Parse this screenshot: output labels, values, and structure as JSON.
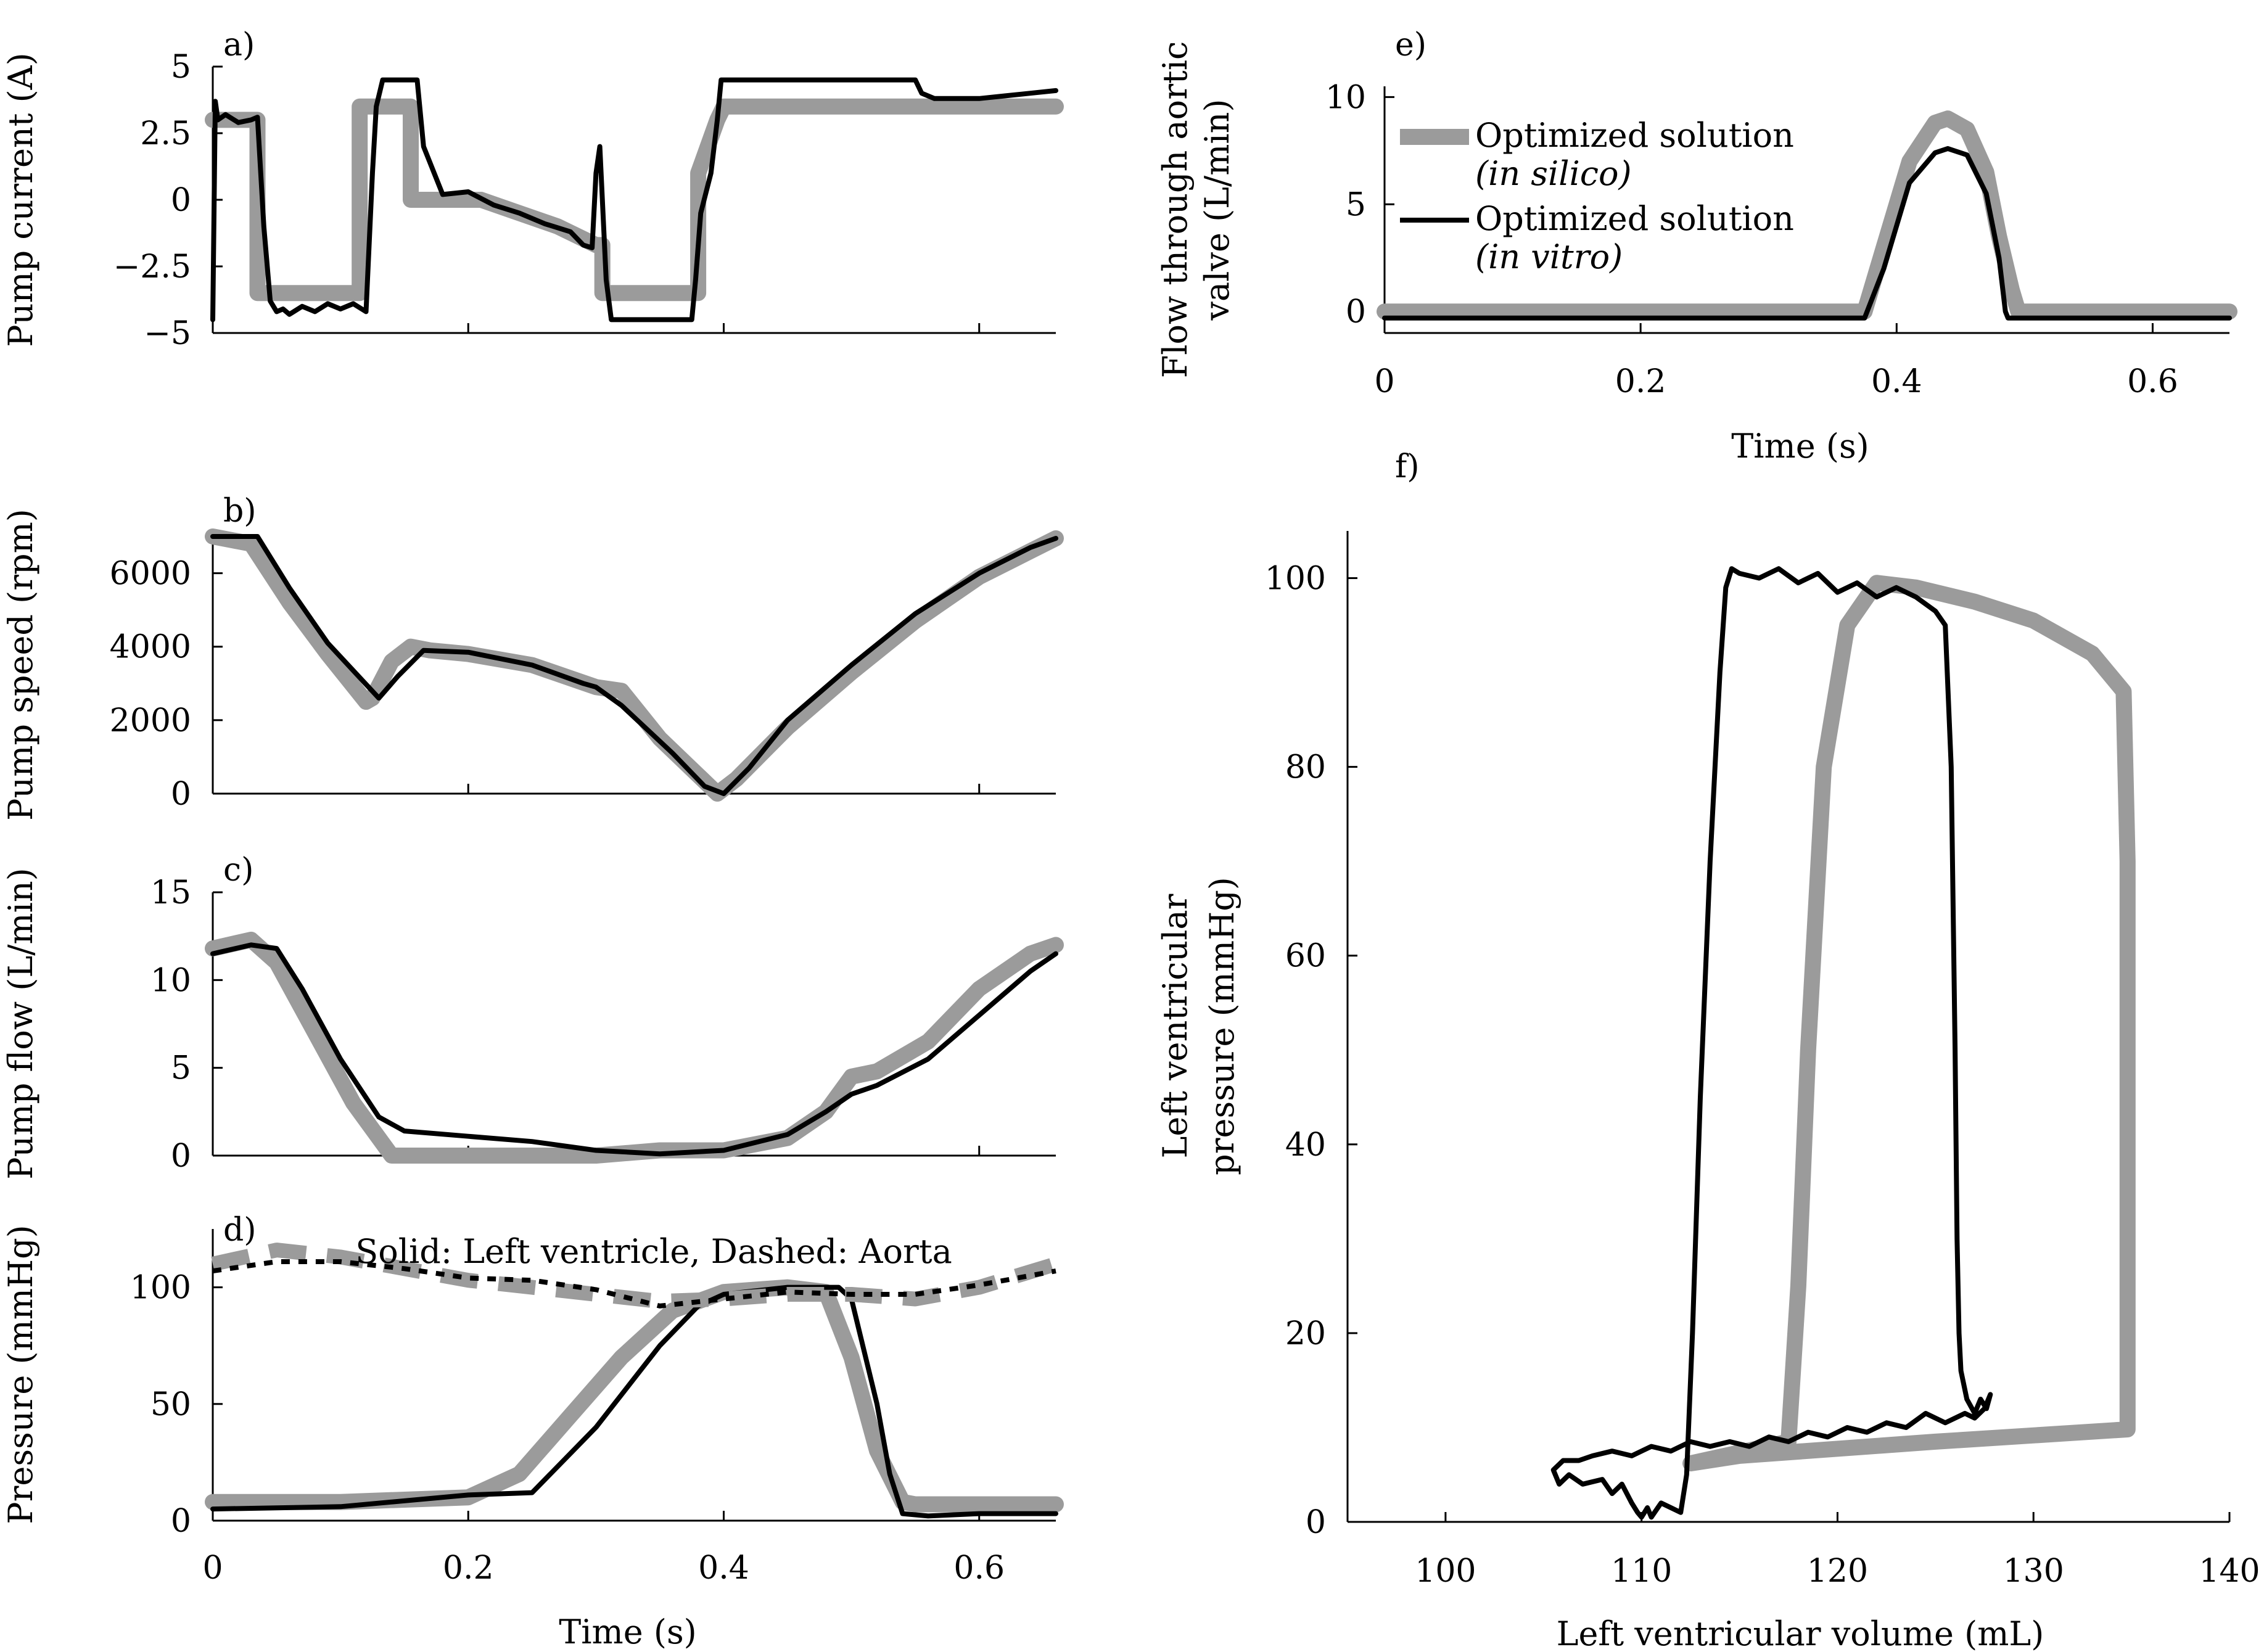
{
  "figure_colors": {
    "in_silico": "#9b9b9b",
    "in_vitro": "#000000"
  },
  "chart_data": [
    {
      "id": "a",
      "panel_label": "a)",
      "type": "line",
      "xlim": [
        0,
        0.66
      ],
      "ylim": [
        -5,
        5
      ],
      "xticks": [
        0,
        0.2,
        0.4,
        0.6
      ],
      "yticks": [
        -5,
        -2.5,
        0,
        2.5,
        5
      ],
      "ytick_labels": [
        "−5",
        "−2.5",
        "0",
        "2.5",
        "5"
      ],
      "ylabel": "Pump current (A)",
      "series": [
        {
          "name": "Optimized solution (in silico)",
          "style": "silico",
          "x": [
            0,
            0.003,
            0.035,
            0.035,
            0.115,
            0.115,
            0.155,
            0.155,
            0.21,
            0.24,
            0.27,
            0.3,
            0.305,
            0.305,
            0.38,
            0.38,
            0.395,
            0.4,
            0.66
          ],
          "y": [
            3.0,
            3.0,
            3.0,
            -3.5,
            -3.5,
            3.5,
            3.5,
            0.0,
            0.0,
            -0.5,
            -1.0,
            -1.7,
            -1.7,
            -3.5,
            -3.5,
            1.0,
            3.0,
            3.5,
            3.5
          ]
        },
        {
          "name": "Optimized solution (in vitro)",
          "style": "vitro",
          "x": [
            0,
            0.002,
            0.004,
            0.01,
            0.02,
            0.03,
            0.035,
            0.04,
            0.045,
            0.05,
            0.055,
            0.06,
            0.07,
            0.08,
            0.09,
            0.1,
            0.11,
            0.12,
            0.125,
            0.128,
            0.133,
            0.14,
            0.16,
            0.165,
            0.18,
            0.2,
            0.22,
            0.24,
            0.26,
            0.28,
            0.29,
            0.297,
            0.3,
            0.303,
            0.308,
            0.312,
            0.315,
            0.33,
            0.36,
            0.375,
            0.378,
            0.382,
            0.39,
            0.395,
            0.398,
            0.4,
            0.42,
            0.5,
            0.55,
            0.555,
            0.565,
            0.6,
            0.62,
            0.64,
            0.66
          ],
          "y": [
            -4.5,
            3.7,
            3.0,
            3.2,
            2.9,
            3.0,
            3.1,
            -1.0,
            -3.8,
            -4.2,
            -4.1,
            -4.3,
            -4.0,
            -4.2,
            -3.9,
            -4.1,
            -3.9,
            -4.2,
            1.0,
            3.5,
            4.5,
            4.5,
            4.5,
            2.0,
            0.2,
            0.3,
            -0.2,
            -0.5,
            -0.9,
            -1.2,
            -1.7,
            -1.8,
            1.0,
            2.0,
            -3.0,
            -4.5,
            -4.5,
            -4.5,
            -4.5,
            -4.5,
            -3.0,
            -0.5,
            1.0,
            3.0,
            4.5,
            4.5,
            4.5,
            4.5,
            4.5,
            4.0,
            3.8,
            3.8,
            3.9,
            4.0,
            4.1
          ]
        }
      ]
    },
    {
      "id": "b",
      "panel_label": "b)",
      "type": "line",
      "xlim": [
        0,
        0.66
      ],
      "ylim": [
        0,
        7000
      ],
      "xticks": [
        0,
        0.2,
        0.4,
        0.6
      ],
      "yticks": [
        0,
        2000,
        4000,
        6000
      ],
      "ytick_labels": [
        "0",
        "2000",
        "4000",
        "6000"
      ],
      "ylabel": "Pump speed (rpm)",
      "series": [
        {
          "name": "Optimized solution (in silico)",
          "style": "silico",
          "x": [
            0,
            0.03,
            0.06,
            0.09,
            0.12,
            0.125,
            0.14,
            0.155,
            0.17,
            0.2,
            0.25,
            0.3,
            0.32,
            0.35,
            0.38,
            0.395,
            0.41,
            0.45,
            0.5,
            0.55,
            0.6,
            0.64,
            0.66
          ],
          "y": [
            7000,
            6800,
            5200,
            3800,
            2500,
            2600,
            3600,
            4000,
            3900,
            3800,
            3500,
            2900,
            2800,
            1500,
            500,
            0,
            400,
            1800,
            3300,
            4700,
            5900,
            6600,
            6950
          ]
        },
        {
          "name": "Optimized solution (in vitro)",
          "style": "vitro",
          "x": [
            0,
            0.035,
            0.06,
            0.09,
            0.13,
            0.145,
            0.165,
            0.2,
            0.25,
            0.29,
            0.3,
            0.32,
            0.36,
            0.385,
            0.4,
            0.42,
            0.45,
            0.5,
            0.55,
            0.6,
            0.64,
            0.66
          ],
          "y": [
            7000,
            7000,
            5600,
            4100,
            2600,
            3200,
            3900,
            3850,
            3500,
            3000,
            2900,
            2400,
            1100,
            200,
            0,
            700,
            2000,
            3500,
            4900,
            6000,
            6700,
            6950
          ]
        }
      ]
    },
    {
      "id": "c",
      "panel_label": "c)",
      "type": "line",
      "xlim": [
        0,
        0.66
      ],
      "ylim": [
        0,
        15
      ],
      "xticks": [
        0,
        0.2,
        0.4,
        0.6
      ],
      "yticks": [
        0,
        5,
        10,
        15
      ],
      "ytick_labels": [
        "0",
        "5",
        "10",
        "15"
      ],
      "ylabel": "Pump flow (L/min)",
      "series": [
        {
          "name": "Optimized solution (in silico)",
          "style": "silico",
          "x": [
            0,
            0.03,
            0.05,
            0.08,
            0.11,
            0.14,
            0.2,
            0.3,
            0.35,
            0.4,
            0.45,
            0.48,
            0.5,
            0.52,
            0.56,
            0.6,
            0.64,
            0.66
          ],
          "y": [
            11.8,
            12.3,
            11.0,
            7.0,
            3.0,
            0.0,
            0.0,
            0.0,
            0.3,
            0.3,
            1.0,
            2.5,
            4.5,
            4.8,
            6.5,
            9.5,
            11.5,
            12.0
          ]
        },
        {
          "name": "Optimized solution (in vitro)",
          "style": "vitro",
          "x": [
            0,
            0.03,
            0.05,
            0.07,
            0.1,
            0.13,
            0.15,
            0.2,
            0.25,
            0.3,
            0.35,
            0.4,
            0.45,
            0.48,
            0.5,
            0.52,
            0.56,
            0.6,
            0.64,
            0.66
          ],
          "y": [
            11.5,
            12.0,
            11.8,
            9.5,
            5.5,
            2.2,
            1.4,
            1.1,
            0.8,
            0.3,
            0.1,
            0.3,
            1.2,
            2.5,
            3.5,
            4.0,
            5.5,
            8.0,
            10.5,
            11.5
          ]
        }
      ]
    },
    {
      "id": "d",
      "panel_label": "d)",
      "type": "line",
      "title": "Solid: Left ventricle, Dashed: Aorta",
      "xlim": [
        0,
        0.66
      ],
      "ylim": [
        0,
        125
      ],
      "xticks": [
        0,
        0.2,
        0.4,
        0.6
      ],
      "xtick_labels": [
        "0",
        "0.2",
        "0.4",
        "0.6"
      ],
      "yticks": [
        0,
        50,
        100
      ],
      "ytick_labels": [
        "0",
        "50",
        "100"
      ],
      "ylabel": "Pressure (mmHg)",
      "xlabel": "Time (s)",
      "series": [
        {
          "name": "Left ventricle (in silico)",
          "style": "silico",
          "x": [
            0,
            0.1,
            0.2,
            0.24,
            0.28,
            0.32,
            0.36,
            0.4,
            0.45,
            0.48,
            0.5,
            0.52,
            0.54,
            0.55,
            0.66
          ],
          "y": [
            8,
            8,
            10,
            20,
            45,
            70,
            90,
            98,
            100,
            98,
            70,
            30,
            8,
            7,
            7
          ]
        },
        {
          "name": "Left ventricle (in vitro)",
          "style": "vitro",
          "x": [
            0,
            0.1,
            0.2,
            0.25,
            0.3,
            0.35,
            0.38,
            0.4,
            0.45,
            0.49,
            0.5,
            0.52,
            0.53,
            0.54,
            0.56,
            0.6,
            0.66
          ],
          "y": [
            5,
            6,
            11,
            12,
            40,
            75,
            92,
            97,
            100,
            100,
            95,
            50,
            20,
            3,
            2,
            3,
            3
          ]
        },
        {
          "name": "Aorta (in silico)",
          "style": "silico-dash",
          "x": [
            0,
            0.05,
            0.1,
            0.15,
            0.2,
            0.25,
            0.3,
            0.35,
            0.4,
            0.45,
            0.5,
            0.55,
            0.6,
            0.66
          ],
          "y": [
            110,
            116,
            113,
            108,
            103,
            100,
            97,
            94,
            95,
            97,
            97,
            95,
            100,
            110
          ]
        },
        {
          "name": "Aorta (in vitro)",
          "style": "vitro-dot",
          "x": [
            0,
            0.05,
            0.1,
            0.15,
            0.2,
            0.25,
            0.3,
            0.35,
            0.4,
            0.45,
            0.5,
            0.55,
            0.6,
            0.66
          ],
          "y": [
            107,
            111,
            111,
            108,
            104,
            103,
            99,
            92,
            95,
            98,
            97,
            97,
            101,
            107
          ]
        }
      ]
    },
    {
      "id": "e",
      "panel_label": "e)",
      "type": "line",
      "xlim": [
        0,
        0.66
      ],
      "ylim": [
        -1,
        10.5
      ],
      "xticks": [
        0,
        0.2,
        0.4,
        0.6
      ],
      "xtick_labels": [
        "0",
        "0.2",
        "0.4",
        "0.6"
      ],
      "yticks": [
        0,
        5,
        10
      ],
      "ytick_labels": [
        "0",
        "5",
        "10"
      ],
      "ylabel": "Flow through aortic valve (L/min)",
      "xlabel": "Time (s)",
      "legend": [
        {
          "style": "silico",
          "line1": "Optimized solution",
          "line2": "(in silico)"
        },
        {
          "style": "vitro",
          "line1": "Optimized solution",
          "line2": "(in vitro)"
        }
      ],
      "series": [
        {
          "name": "Optimized solution (in silico)",
          "style": "silico",
          "x": [
            0,
            0.375,
            0.39,
            0.41,
            0.43,
            0.44,
            0.455,
            0.47,
            0.48,
            0.49,
            0.495,
            0.66
          ],
          "y": [
            0,
            0,
            3.0,
            7.0,
            8.8,
            9.0,
            8.5,
            6.5,
            3.5,
            1.0,
            0,
            0
          ]
        },
        {
          "name": "Optimized solution (in vitro)",
          "style": "vitro",
          "x": [
            0,
            0.375,
            0.39,
            0.41,
            0.43,
            0.44,
            0.455,
            0.47,
            0.48,
            0.485,
            0.487,
            0.66
          ],
          "y": [
            -0.3,
            -0.3,
            2.0,
            6.0,
            7.4,
            7.6,
            7.3,
            5.5,
            2.5,
            0.0,
            -0.3,
            -0.3
          ]
        }
      ]
    },
    {
      "id": "f",
      "panel_label": "f)",
      "type": "line",
      "xlim": [
        95,
        140
      ],
      "ylim": [
        0,
        105
      ],
      "xticks": [
        100,
        110,
        120,
        130,
        140
      ],
      "xtick_labels": [
        "100",
        "110",
        "120",
        "130",
        "140"
      ],
      "yticks": [
        0,
        20,
        40,
        60,
        80,
        100
      ],
      "ytick_labels": [
        "0",
        "20",
        "40",
        "60",
        "80",
        "100"
      ],
      "ylabel": "Left ventricular pressure (mmHg)",
      "xlabel": "Left ventricular volume (mL)",
      "series": [
        {
          "name": "PV loop (in silico)",
          "style": "silico",
          "x": [
            112.5,
            117.5,
            118.0,
            118.5,
            119.3,
            120.5,
            122.0,
            124.0,
            127.0,
            130.0,
            133.0,
            134.6,
            134.8,
            134.8,
            134.8,
            125.0,
            115.0,
            112.5
          ],
          "y": [
            6.2,
            8.5,
            25.0,
            50.0,
            80.0,
            95.0,
            99.5,
            99.0,
            97.5,
            95.5,
            92.0,
            88.0,
            70.0,
            30.0,
            9.8,
            8.5,
            7.0,
            6.2
          ]
        },
        {
          "name": "PV loop (in vitro)",
          "style": "vitro",
          "x": [
            105.5,
            105.8,
            106.3,
            107.0,
            108.0,
            108.5,
            109.0,
            109.5,
            109.8,
            110.0,
            110.3,
            110.5,
            111.0,
            111.5,
            112.0,
            112.3,
            112.6,
            113.0,
            113.5,
            114.0,
            114.3,
            114.6,
            115.0,
            116.0,
            117.0,
            118.0,
            119.0,
            120.0,
            121.0,
            122.0,
            123.0,
            124.0,
            125.0,
            125.5,
            125.8,
            126.0,
            126.1,
            126.2,
            126.3,
            126.6,
            127.0,
            127.3,
            127.6,
            127.8,
            127.5,
            127.0,
            126.5,
            125.5,
            124.5,
            123.5,
            122.5,
            121.5,
            120.5,
            119.5,
            118.5,
            117.5,
            116.5,
            115.5,
            114.5,
            113.5,
            112.5,
            111.5,
            110.5,
            109.5,
            108.5,
            107.5,
            106.8,
            106.0,
            105.5
          ],
          "y": [
            5.5,
            4.0,
            5.0,
            4.0,
            4.5,
            3.0,
            4.0,
            2.0,
            1.0,
            0.5,
            1.5,
            0.5,
            2.0,
            1.5,
            1.0,
            5.0,
            20.0,
            45.0,
            70.0,
            90.0,
            99.0,
            101.0,
            100.5,
            100.0,
            101.0,
            99.5,
            100.5,
            98.5,
            99.5,
            98.0,
            99.0,
            98.0,
            96.5,
            95.0,
            80.0,
            50.0,
            30.0,
            20.0,
            16.0,
            13.0,
            11.5,
            13.0,
            12.0,
            13.5,
            12.0,
            11.0,
            11.5,
            10.5,
            11.5,
            10.0,
            10.5,
            9.5,
            10.0,
            9.0,
            9.5,
            8.5,
            9.0,
            8.0,
            8.5,
            8.0,
            8.5,
            7.5,
            8.0,
            7.0,
            7.5,
            7.0,
            6.5,
            6.5,
            5.5
          ]
        }
      ]
    }
  ]
}
